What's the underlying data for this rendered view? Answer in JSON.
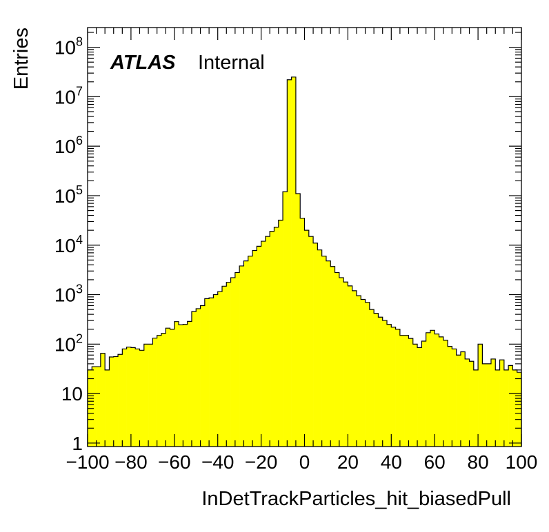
{
  "chart_data": {
    "type": "histogram",
    "title": "",
    "xlabel": "InDetTrackParticles_hit_biasedPull",
    "ylabel": "Entries",
    "xlim": [
      -100,
      100
    ],
    "ylim": [
      0.85,
      250000000
    ],
    "yscale": "log",
    "grid": false,
    "legend": "none",
    "bin_width": 2,
    "fill_color": "#ffff00",
    "edge_color": "#000000",
    "label": {
      "bold": "ATLAS",
      "normal": "Internal"
    },
    "x_tick_labels": [
      "−100",
      "−80",
      "−60",
      "−40",
      "−20",
      "0",
      "20",
      "40",
      "60",
      "80",
      "100"
    ],
    "x_ticks": [
      -100,
      -80,
      -60,
      -40,
      -20,
      0,
      20,
      40,
      60,
      80,
      100
    ],
    "y_ticks": [
      {
        "value": 1,
        "base": "1",
        "exp": ""
      },
      {
        "value": 10,
        "base": "10",
        "exp": ""
      },
      {
        "value": 100,
        "base": "10",
        "exp": "2"
      },
      {
        "value": 1000,
        "base": "10",
        "exp": "3"
      },
      {
        "value": 10000,
        "base": "10",
        "exp": "4"
      },
      {
        "value": 100000,
        "base": "10",
        "exp": "5"
      },
      {
        "value": 1000000,
        "base": "10",
        "exp": "6"
      },
      {
        "value": 10000000,
        "base": "10",
        "exp": "7"
      },
      {
        "value": 100000000,
        "base": "10",
        "exp": "8"
      }
    ],
    "bin_edges_start": -100,
    "values": [
      30,
      35,
      35,
      65,
      30,
      55,
      56,
      62,
      80,
      87,
      85,
      80,
      75,
      100,
      100,
      132,
      150,
      165,
      210,
      200,
      285,
      245,
      250,
      288,
      455,
      520,
      600,
      830,
      860,
      1000,
      1150,
      1480,
      1780,
      2200,
      2800,
      3800,
      4800,
      6000,
      7800,
      9500,
      12000,
      15000,
      19000,
      23000,
      32000,
      120000,
      22000000.0,
      25000000.0,
      110000,
      35000,
      20000,
      15000,
      11000,
      8000,
      6000,
      4800,
      3700,
      2800,
      2200,
      1800,
      1500,
      1200,
      950,
      800,
      700,
      500,
      420,
      350,
      300,
      250,
      220,
      200,
      150,
      150,
      130,
      100,
      85,
      115,
      170,
      190,
      160,
      140,
      120,
      90,
      80,
      60,
      70,
      50,
      45,
      30,
      100,
      40,
      40,
      50,
      30,
      48,
      30,
      37,
      30,
      27
    ]
  }
}
